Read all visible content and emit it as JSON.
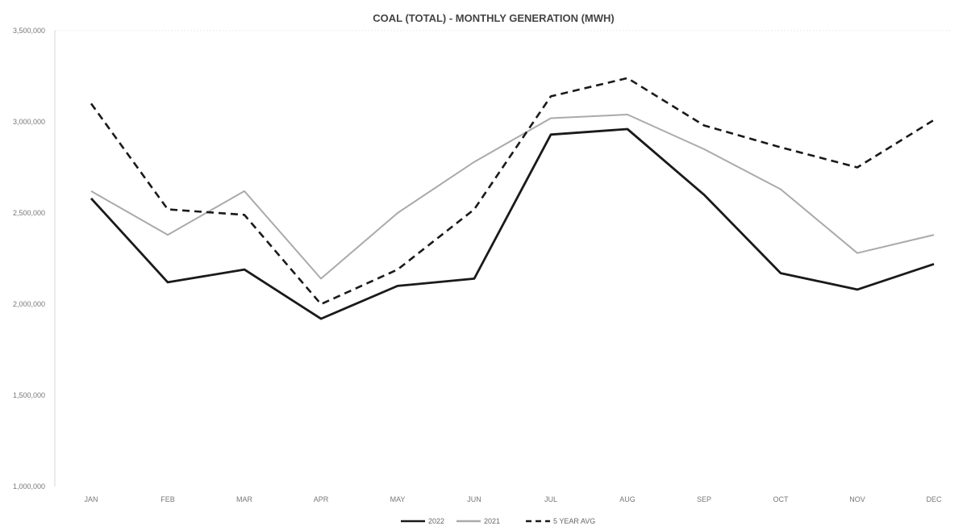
{
  "chart_data": {
    "type": "line",
    "title": "COAL (TOTAL) - MONTHLY GENERATION (MWH)",
    "xlabel": "",
    "ylabel": "",
    "categories": [
      "JAN",
      "FEB",
      "MAR",
      "APR",
      "MAY",
      "JUN",
      "JUL",
      "AUG",
      "SEP",
      "OCT",
      "NOV",
      "DEC"
    ],
    "ylim": [
      1000000,
      3500000
    ],
    "yticks": [
      1000000,
      1500000,
      2000000,
      2500000,
      3000000,
      3500000
    ],
    "ytick_labels": [
      "1,000,000",
      "1,500,000",
      "2,000,000",
      "2,500,000",
      "3,000,000",
      "3,500,000"
    ],
    "grid": false,
    "legend_position": "bottom",
    "series": [
      {
        "name": "2022",
        "color": "#1a1a1a",
        "style": "solid",
        "values": [
          2580000,
          2120000,
          2190000,
          1920000,
          2100000,
          2140000,
          2930000,
          2960000,
          2600000,
          2170000,
          2080000,
          2220000
        ]
      },
      {
        "name": "2021",
        "color": "#aaaaaa",
        "style": "solid",
        "values": [
          2620000,
          2380000,
          2620000,
          2140000,
          2500000,
          2780000,
          3020000,
          3040000,
          2850000,
          2630000,
          2280000,
          2380000
        ]
      },
      {
        "name": "5 YEAR AVG",
        "color": "#1a1a1a",
        "style": "dashed",
        "values": [
          3100000,
          2520000,
          2490000,
          2000000,
          2190000,
          2520000,
          3140000,
          3240000,
          2980000,
          2860000,
          2750000,
          3010000
        ]
      }
    ]
  }
}
